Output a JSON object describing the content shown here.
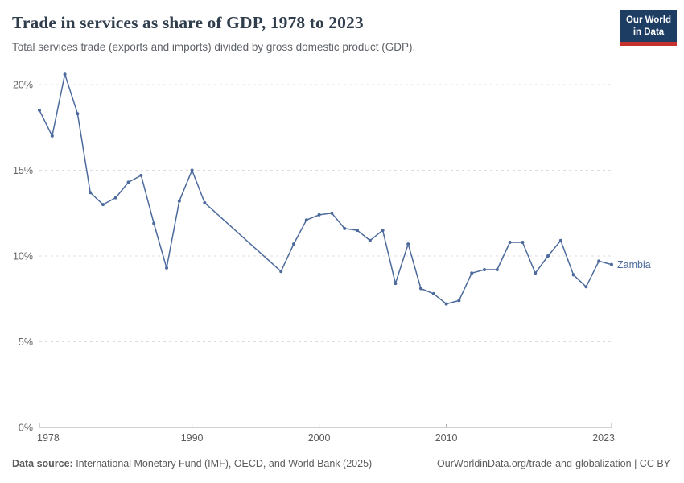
{
  "header": {
    "title": "Trade in services as share of GDP, 1978 to 2023",
    "subtitle": "Total services trade (exports and imports) divided by gross domestic product (GDP).",
    "logo": {
      "line1": "Our World",
      "line2": "in Data"
    }
  },
  "chart_data": {
    "type": "line",
    "title": "Trade in services as share of GDP, 1978 to 2023",
    "xlabel": "",
    "ylabel": "",
    "xlim": [
      1978,
      2023
    ],
    "ylim": [
      0,
      20
    ],
    "grid": true,
    "x_ticks": [
      1978,
      1990,
      2000,
      2010,
      2023
    ],
    "y_ticks": [
      0,
      5,
      10,
      15,
      20
    ],
    "y_tick_suffix": "%",
    "entity_label": "Zambia",
    "series": [
      {
        "name": "Zambia",
        "color": "#4c6a9c",
        "points": [
          {
            "year": 1978,
            "value": 18.5
          },
          {
            "year": 1979,
            "value": 17.0
          },
          {
            "year": 1980,
            "value": 20.6
          },
          {
            "year": 1981,
            "value": 18.3
          },
          {
            "year": 1982,
            "value": 13.7
          },
          {
            "year": 1983,
            "value": 13.0
          },
          {
            "year": 1984,
            "value": 13.4
          },
          {
            "year": 1985,
            "value": 14.3
          },
          {
            "year": 1986,
            "value": 14.7
          },
          {
            "year": 1987,
            "value": 11.9
          },
          {
            "year": 1988,
            "value": 9.3
          },
          {
            "year": 1989,
            "value": 13.2
          },
          {
            "year": 1990,
            "value": 15.0
          },
          {
            "year": 1991,
            "value": 13.1
          },
          {
            "year": 1997,
            "value": 9.1
          },
          {
            "year": 1998,
            "value": 10.7
          },
          {
            "year": 1999,
            "value": 12.1
          },
          {
            "year": 2000,
            "value": 12.4
          },
          {
            "year": 2001,
            "value": 12.5
          },
          {
            "year": 2002,
            "value": 11.6
          },
          {
            "year": 2003,
            "value": 11.5
          },
          {
            "year": 2004,
            "value": 10.9
          },
          {
            "year": 2005,
            "value": 11.5
          },
          {
            "year": 2006,
            "value": 8.4
          },
          {
            "year": 2007,
            "value": 10.7
          },
          {
            "year": 2008,
            "value": 8.1
          },
          {
            "year": 2009,
            "value": 7.8
          },
          {
            "year": 2010,
            "value": 7.2
          },
          {
            "year": 2011,
            "value": 7.4
          },
          {
            "year": 2012,
            "value": 9.0
          },
          {
            "year": 2013,
            "value": 9.2
          },
          {
            "year": 2014,
            "value": 9.2
          },
          {
            "year": 2015,
            "value": 10.8
          },
          {
            "year": 2016,
            "value": 10.8
          },
          {
            "year": 2017,
            "value": 9.0
          },
          {
            "year": 2018,
            "value": 10.0
          },
          {
            "year": 2019,
            "value": 10.9
          },
          {
            "year": 2020,
            "value": 8.9
          },
          {
            "year": 2021,
            "value": 8.2
          },
          {
            "year": 2022,
            "value": 9.7
          },
          {
            "year": 2023,
            "value": 9.5
          }
        ]
      }
    ]
  },
  "footer": {
    "source_label": "Data source:",
    "source_text": " International Monetary Fund (IMF), OECD, and World Bank (2025)",
    "link_text": "OurWorldinData.org/trade-and-globalization",
    "license_text": " | CC BY"
  },
  "colors": {
    "line": "#4c6a9c",
    "entity_label": "#4c6a9c",
    "grid": "#dcdcdc",
    "axis": "#a3a3a3",
    "y_tick_label": "#666666",
    "x_tick_label": "#5b5b5b",
    "title": "#2f3d4c",
    "subtitle": "#5f6368",
    "logo_bg": "#1d3d63",
    "logo_stripe": "#c5312d"
  }
}
